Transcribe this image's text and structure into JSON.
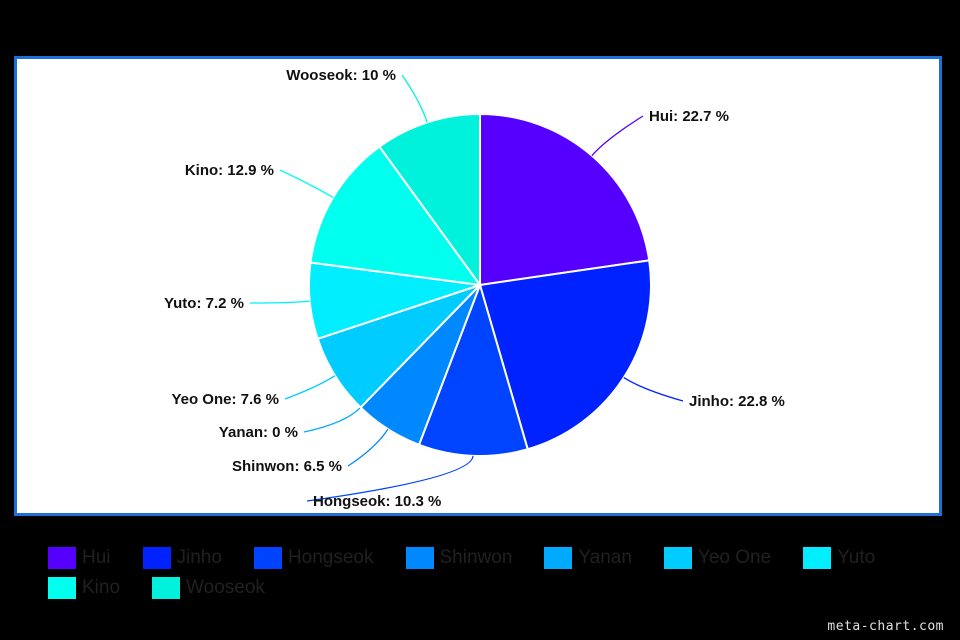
{
  "chart_data": {
    "type": "pie",
    "categories": [
      "Hui",
      "Jinho",
      "Hongseok",
      "Shinwon",
      "Yanan",
      "Yeo One",
      "Yuto",
      "Kino",
      "Wooseok"
    ],
    "values": [
      22.7,
      22.8,
      10.3,
      6.5,
      0,
      7.6,
      7.2,
      12.9,
      10
    ],
    "slice_labels": [
      "Hui: 22.7 %",
      "Jinho: 22.8 %",
      "Hongseok: 10.3 %",
      "Shinwon: 6.5 %",
      "Yanan: 0 %",
      "Yeo One: 7.6 %",
      "Yuto: 7.2 %",
      "Kino: 12.9 %",
      "Wooseok: 10 %"
    ],
    "colors": [
      "#5500ff",
      "#0022ff",
      "#0044ff",
      "#0088ff",
      "#00aaff",
      "#00ccff",
      "#00eeff",
      "#00ffee",
      "#00f2dd"
    ],
    "legend_position": "bottom",
    "start_angle": "top, clockwise"
  },
  "watermark": "meta-chart.com"
}
